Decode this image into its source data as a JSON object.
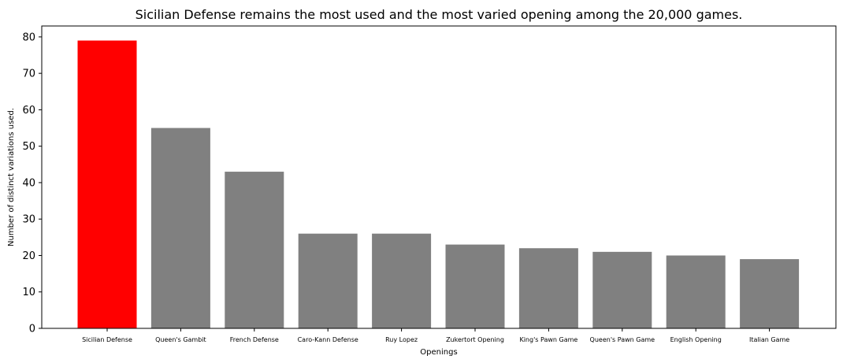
{
  "chart_data": {
    "type": "bar",
    "title": "Sicilian Defense remains the most used and the most varied opening among the 20,000 games.",
    "xlabel": "Openings",
    "ylabel": "Number of distinct variations used.",
    "categories": [
      "Sicilian Defense",
      "Queen's Gambit",
      "French Defense",
      "Caro-Kann Defense",
      "Ruy Lopez",
      "Zukertort Opening",
      "King's Pawn Game",
      "Queen's Pawn Game",
      "English Opening",
      "Italian Game"
    ],
    "values": [
      79,
      55,
      43,
      26,
      26,
      23,
      22,
      21,
      20,
      19
    ],
    "colors": [
      "#ff0000",
      "#808080",
      "#808080",
      "#808080",
      "#808080",
      "#808080",
      "#808080",
      "#808080",
      "#808080",
      "#808080"
    ],
    "ylim": [
      0,
      83
    ],
    "yticks": [
      0,
      10,
      20,
      30,
      40,
      50,
      60,
      70,
      80
    ],
    "grid": false,
    "legend": "none"
  }
}
